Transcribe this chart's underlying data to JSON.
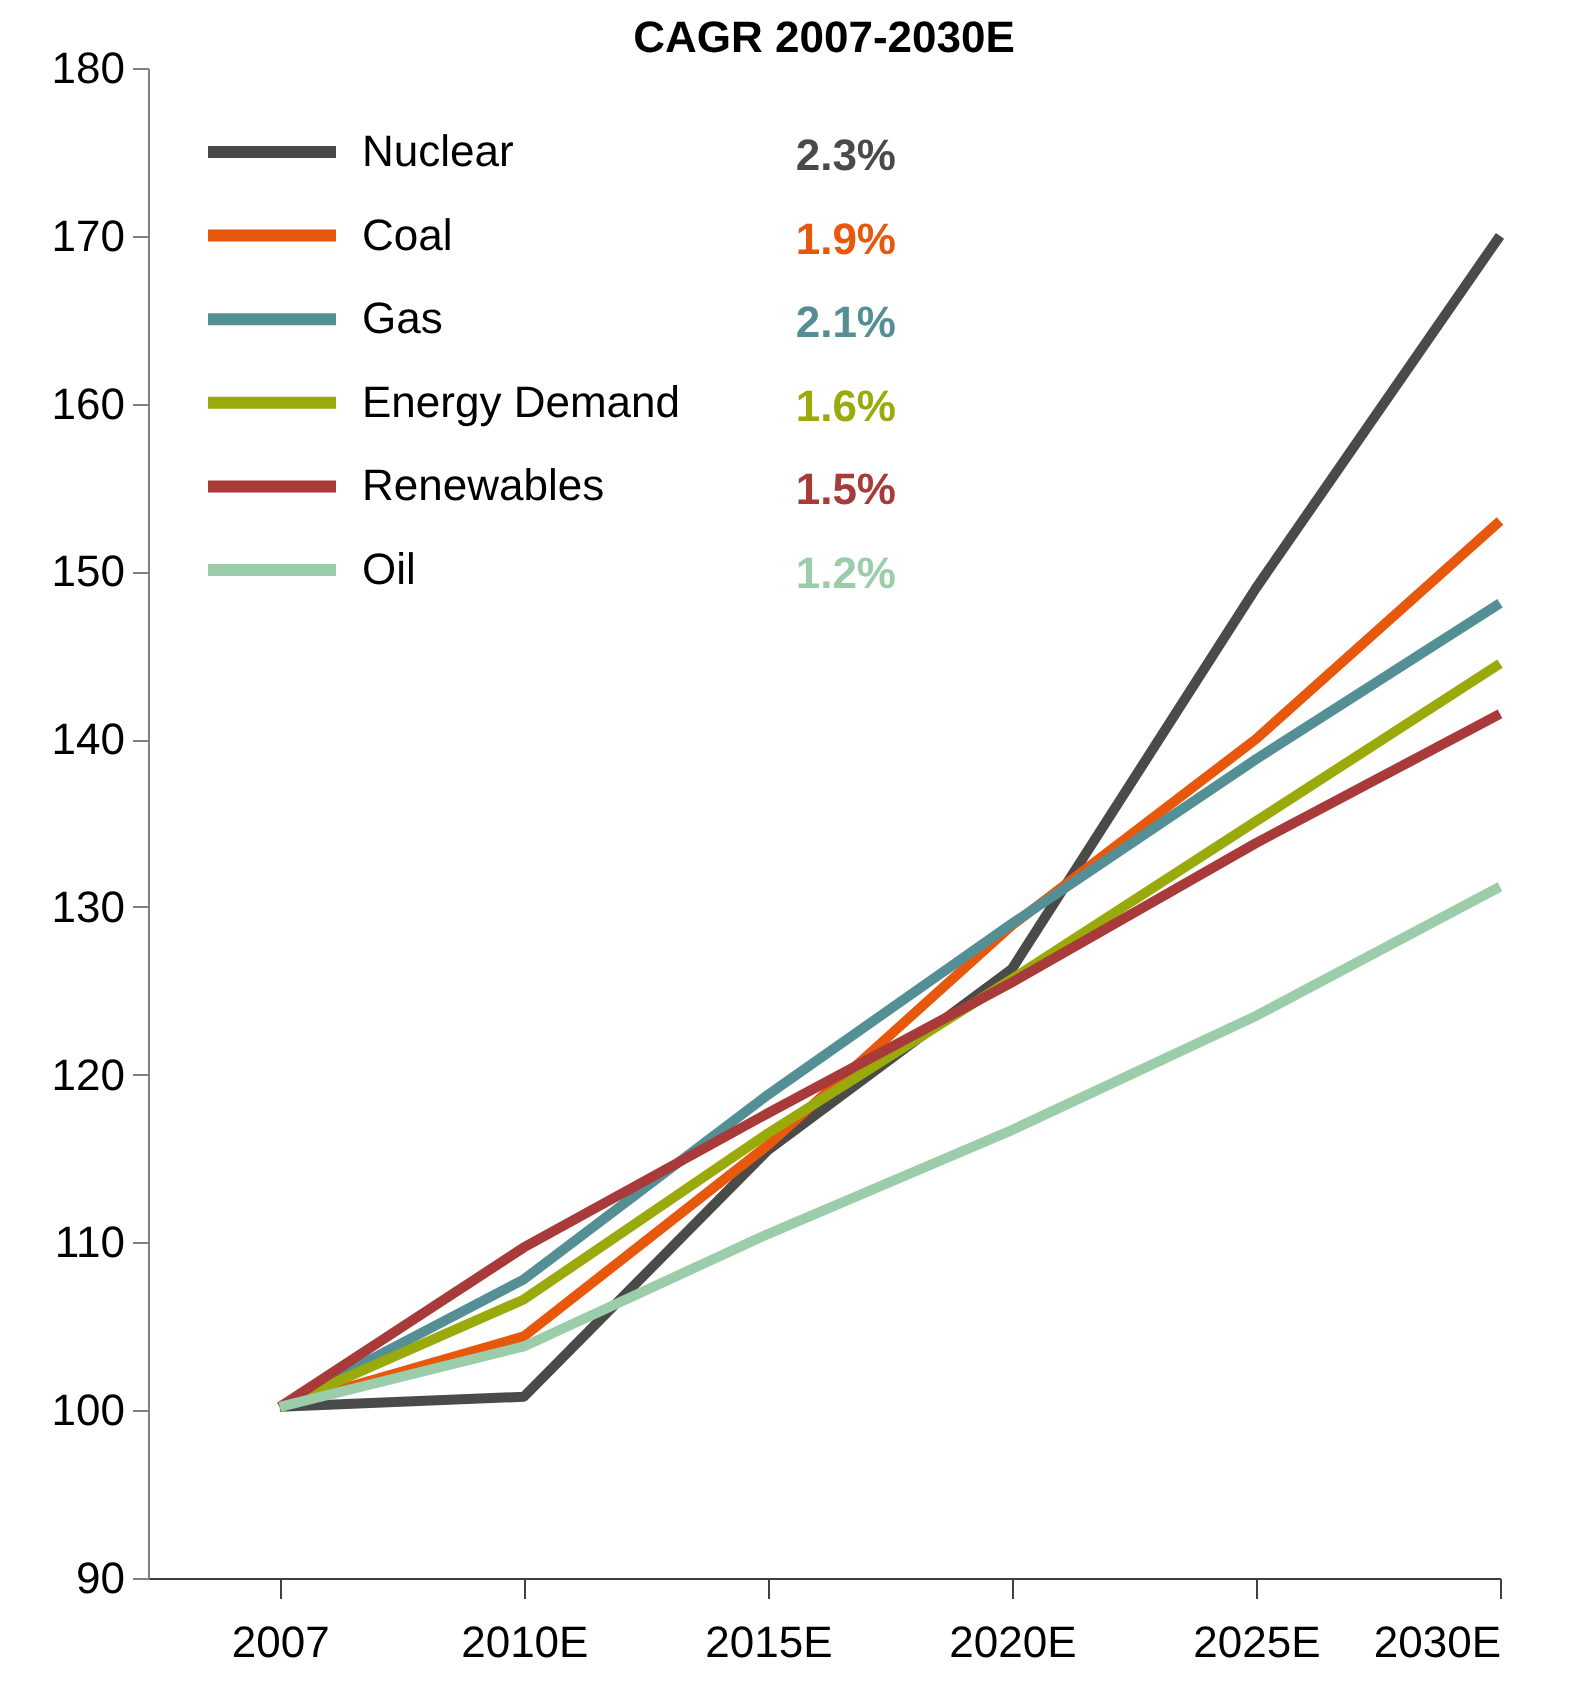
{
  "chart_data": {
    "type": "line",
    "title": "CAGR 2007-2030E",
    "categories": [
      "2007",
      "2010E",
      "2015E",
      "2020E",
      "2025E",
      "2030E"
    ],
    "series": [
      {
        "name": "Nuclear",
        "color": "#4a4a48",
        "values": [
          100.2,
          100.8,
          115.5,
          126.3,
          149,
          170
        ]
      },
      {
        "name": "Coal",
        "color": "#e8580c",
        "values": [
          100.2,
          104.4,
          115.8,
          128.9,
          140,
          153
        ]
      },
      {
        "name": "Gas",
        "color": "#548f96",
        "values": [
          100.2,
          107.8,
          118.8,
          129,
          138.8,
          148.1
        ]
      },
      {
        "name": "Energy Demand",
        "color": "#9aaa0a",
        "values": [
          100.2,
          106.6,
          116.5,
          125.7,
          135.1,
          144.5
        ]
      },
      {
        "name": "Renewables",
        "color": "#a83a3a",
        "values": [
          100.2,
          109.7,
          117.7,
          125.5,
          133.8,
          141.5
        ]
      },
      {
        "name": "Oil",
        "color": "#9ccdab",
        "values": [
          100.2,
          103.8,
          110.5,
          116.7,
          123.5,
          131.2
        ]
      }
    ],
    "ylim": [
      90,
      180
    ],
    "yticks": [
      90,
      100,
      110,
      120,
      130,
      140,
      150,
      160,
      170,
      180
    ],
    "legend": "top left",
    "annotations": [
      "2.3%",
      "1.9%",
      "2.1%",
      "1.6%",
      "1.5%",
      "1.2%"
    ]
  }
}
